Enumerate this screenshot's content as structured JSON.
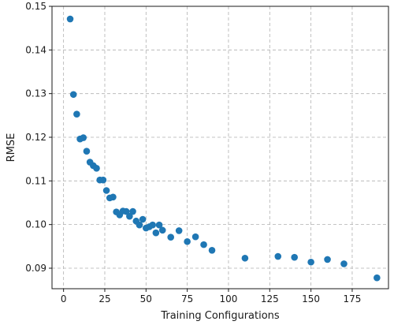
{
  "chart_data": {
    "type": "scatter",
    "title": "",
    "xlabel": "Training Configurations",
    "ylabel": "RMSE",
    "xlim": [
      -7,
      197
    ],
    "ylim": [
      0.0853,
      0.15
    ],
    "grid": true,
    "marker_color": "#1f77b4",
    "x_ticks": [
      0,
      25,
      50,
      75,
      100,
      125,
      150,
      175
    ],
    "x_tick_labels": [
      "0",
      "25",
      "50",
      "75",
      "100",
      "125",
      "150",
      "175"
    ],
    "y_ticks": [
      0.09,
      0.1,
      0.11,
      0.12,
      0.13,
      0.14,
      0.15
    ],
    "y_tick_labels": [
      "0.09",
      "0.10",
      "0.11",
      "0.12",
      "0.13",
      "0.14",
      "0.15"
    ],
    "points": [
      [
        4,
        0.1471
      ],
      [
        6,
        0.1298
      ],
      [
        8,
        0.1253
      ],
      [
        10,
        0.1196
      ],
      [
        12,
        0.1199
      ],
      [
        14,
        0.1168
      ],
      [
        16,
        0.1143
      ],
      [
        18,
        0.1135
      ],
      [
        20,
        0.1129
      ],
      [
        22,
        0.1102
      ],
      [
        24,
        0.1102
      ],
      [
        26,
        0.1078
      ],
      [
        28,
        0.1061
      ],
      [
        30,
        0.1063
      ],
      [
        32,
        0.1029
      ],
      [
        34,
        0.1022
      ],
      [
        36,
        0.1031
      ],
      [
        38,
        0.103
      ],
      [
        40,
        0.1019
      ],
      [
        42,
        0.103
      ],
      [
        44,
        0.1008
      ],
      [
        46,
        0.0999
      ],
      [
        48,
        0.1012
      ],
      [
        50,
        0.0992
      ],
      [
        52,
        0.0995
      ],
      [
        54,
        0.0999
      ],
      [
        56,
        0.0981
      ],
      [
        58,
        0.0999
      ],
      [
        60,
        0.0987
      ],
      [
        65,
        0.0971
      ],
      [
        70,
        0.0986
      ],
      [
        75,
        0.0961
      ],
      [
        80,
        0.0972
      ],
      [
        85,
        0.0954
      ],
      [
        90,
        0.0941
      ],
      [
        110,
        0.0923
      ],
      [
        130,
        0.0927
      ],
      [
        140,
        0.0925
      ],
      [
        150,
        0.0914
      ],
      [
        160,
        0.092
      ],
      [
        170,
        0.091
      ],
      [
        190,
        0.0878
      ]
    ]
  }
}
